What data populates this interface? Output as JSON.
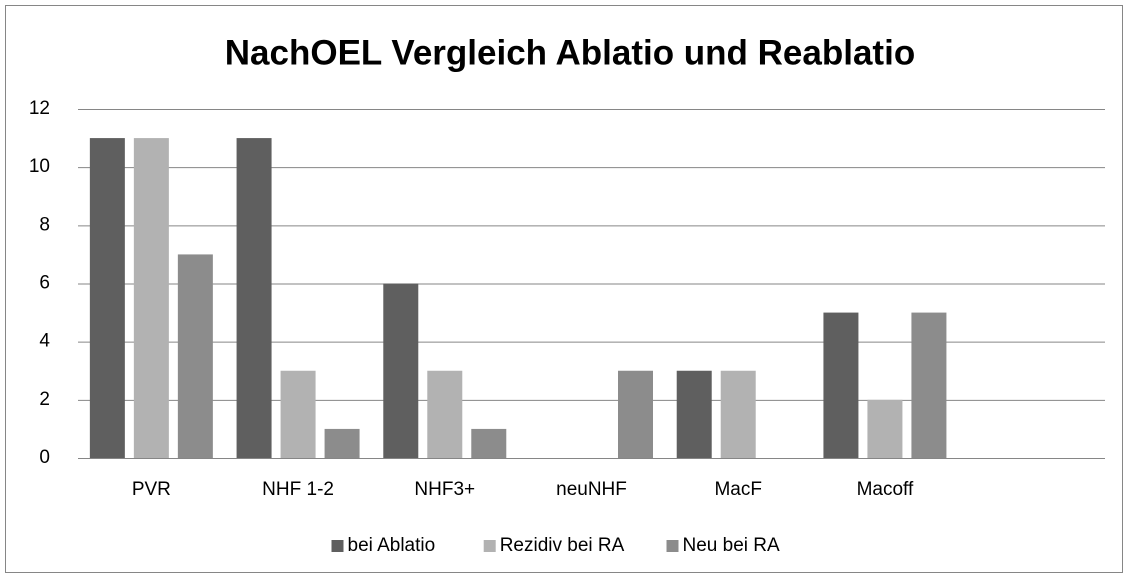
{
  "chart_data": {
    "type": "bar",
    "title": "NachOEL Vergleich Ablatio und Reablatio",
    "categories": [
      "PVR",
      "NHF 1-2",
      "NHF3+",
      "neuNHF",
      "MacF",
      "Macoff",
      null
    ],
    "series": [
      {
        "name": "bei Ablatio",
        "color": "#5f5f5f",
        "values": [
          11,
          11,
          6,
          0,
          3,
          5,
          null
        ]
      },
      {
        "name": "Rezidiv bei RA",
        "color": "#b2b2b2",
        "values": [
          11,
          3,
          3,
          0,
          3,
          2,
          null
        ]
      },
      {
        "name": "Neu bei RA",
        "color": "#8c8c8c",
        "values": [
          7,
          1,
          1,
          3,
          0,
          5,
          null
        ]
      }
    ],
    "ylim": [
      0,
      12
    ],
    "yticks": [
      0,
      2,
      4,
      6,
      8,
      10,
      12
    ],
    "grid": true,
    "legend": "bottom"
  }
}
